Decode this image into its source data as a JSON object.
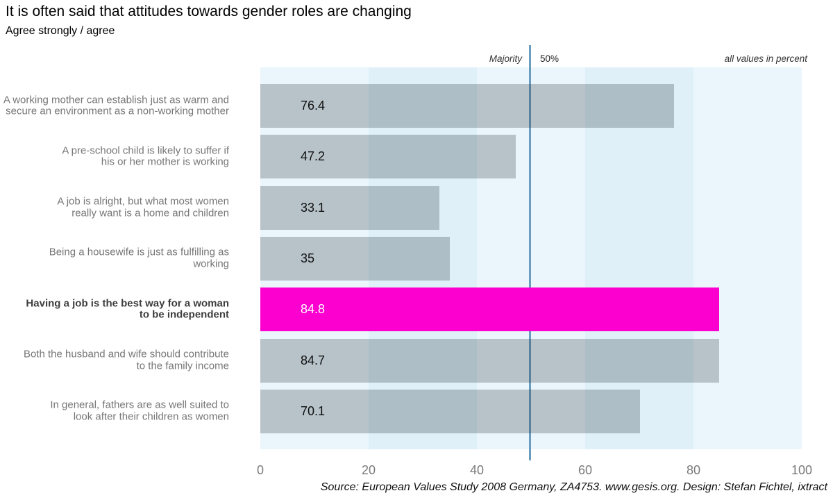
{
  "header": {
    "title": "It is often said that attitudes towards gender roles are changing",
    "subtitle": "Agree strongly / agree"
  },
  "annotations": {
    "majority_label": "Majority",
    "fifty_percent_label": "50%",
    "units_note": "all values in percent"
  },
  "chart_data": {
    "type": "bar",
    "orientation": "horizontal",
    "title": "It is often said that attitudes towards gender roles are changing",
    "subtitle": "Agree strongly / agree",
    "xlim": [
      0,
      100
    ],
    "x_ticks": [
      "0",
      "20",
      "40",
      "60",
      "80",
      "100"
    ],
    "grid": "alternating vertical bands every 20 units",
    "reference_line": {
      "x": 50,
      "left_label": "Majority",
      "right_label": "50%"
    },
    "units": "percent",
    "highlight_index": 4,
    "rows": [
      {
        "label_lines": [
          "A working mother can establish just as warm and",
          "secure an environment as a non-working mother"
        ],
        "value": 76.4,
        "value_label": "76.4"
      },
      {
        "label_lines": [
          "A pre-school child is likely to suffer if",
          "his or her mother is working"
        ],
        "value": 47.2,
        "value_label": "47.2"
      },
      {
        "label_lines": [
          "A job is alright, but what most women",
          "really want is a home and children"
        ],
        "value": 33.1,
        "value_label": "33.1"
      },
      {
        "label_lines": [
          "Being a housewife is just as fulfilling as",
          "working"
        ],
        "value": 35,
        "value_label": "35"
      },
      {
        "label_lines": [
          "Having a job is the best way for a woman",
          "to be independent"
        ],
        "value": 84.8,
        "value_label": "84.8"
      },
      {
        "label_lines": [
          "Both the husband and wife should contribute",
          "to the family income"
        ],
        "value": 84.7,
        "value_label": "84.7"
      },
      {
        "label_lines": [
          "In general, fathers are as well suited to",
          "look after their children as women"
        ],
        "value": 70.1,
        "value_label": "70.1"
      }
    ],
    "colors": {
      "band_light": "#EBF6FC",
      "band_dark": "#DFF0F9",
      "bar_overlay": "rgba(45,55,62,0.27)",
      "bar_apparent": "#B9C3C9",
      "highlight": "#FB00CF",
      "reference_line": "#6B9DBE",
      "category_text": "#767676",
      "value_text": "#111111"
    }
  },
  "footer": {
    "source": "Source: European Values Study 2008 Germany, ZA4753. www.gesis.org. Design: Stefan Fichtel, ixtract"
  }
}
